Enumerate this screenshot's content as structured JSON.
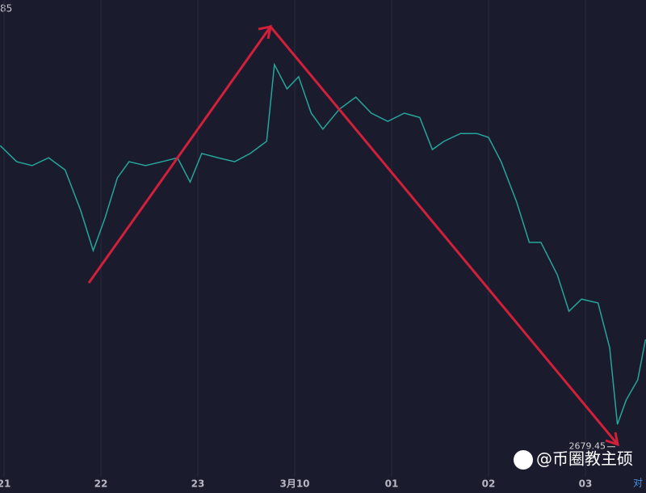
{
  "chart_data": {
    "type": "line",
    "top_label": "85",
    "x": [
      -0.04,
      0.13,
      0.29,
      0.46,
      0.63,
      0.79,
      0.92,
      1.04,
      1.17,
      1.29,
      1.46,
      1.63,
      1.79,
      1.92,
      2.04,
      2.21,
      2.38,
      2.54,
      2.71,
      2.79,
      2.92,
      3.04,
      3.17,
      3.29,
      3.46,
      3.63,
      3.79,
      3.96,
      4.13,
      4.29,
      4.42,
      4.54,
      4.71,
      4.88,
      5.0,
      5.13,
      5.29,
      5.42,
      5.54,
      5.71,
      5.83,
      5.96,
      6.13,
      6.25,
      6.33,
      6.42,
      6.54,
      6.62
    ],
    "series": [
      {
        "color": "#26a69a",
        "values": [
          3374,
          3337,
          3328,
          3346,
          3318,
          3225,
          3132,
          3206,
          3300,
          3337,
          3328,
          3337,
          3346,
          3290,
          3356,
          3346,
          3337,
          3356,
          3384,
          3561,
          3505,
          3533,
          3449,
          3412,
          3458,
          3486,
          3449,
          3430,
          3449,
          3439,
          3365,
          3384,
          3402,
          3402,
          3393,
          3337,
          3244,
          3151,
          3151,
          3076,
          2992,
          3020,
          3011,
          2908,
          2731,
          2787,
          2834,
          2927
        ]
      }
    ],
    "xlim": [
      -0.042,
      6.625
    ],
    "ylim": [
      2610,
      3710
    ],
    "xticks": [
      {
        "value": 0,
        "label": "21"
      },
      {
        "value": 1,
        "label": "22"
      },
      {
        "value": 2,
        "label": "23"
      },
      {
        "value": 3,
        "label": "3月10"
      },
      {
        "value": 4,
        "label": "01"
      },
      {
        "value": 5,
        "label": "02"
      },
      {
        "value": 6,
        "label": "03"
      }
    ],
    "low_price": 2679.45,
    "log_scale_label": "对",
    "watermark": "@币圈教主硕"
  }
}
